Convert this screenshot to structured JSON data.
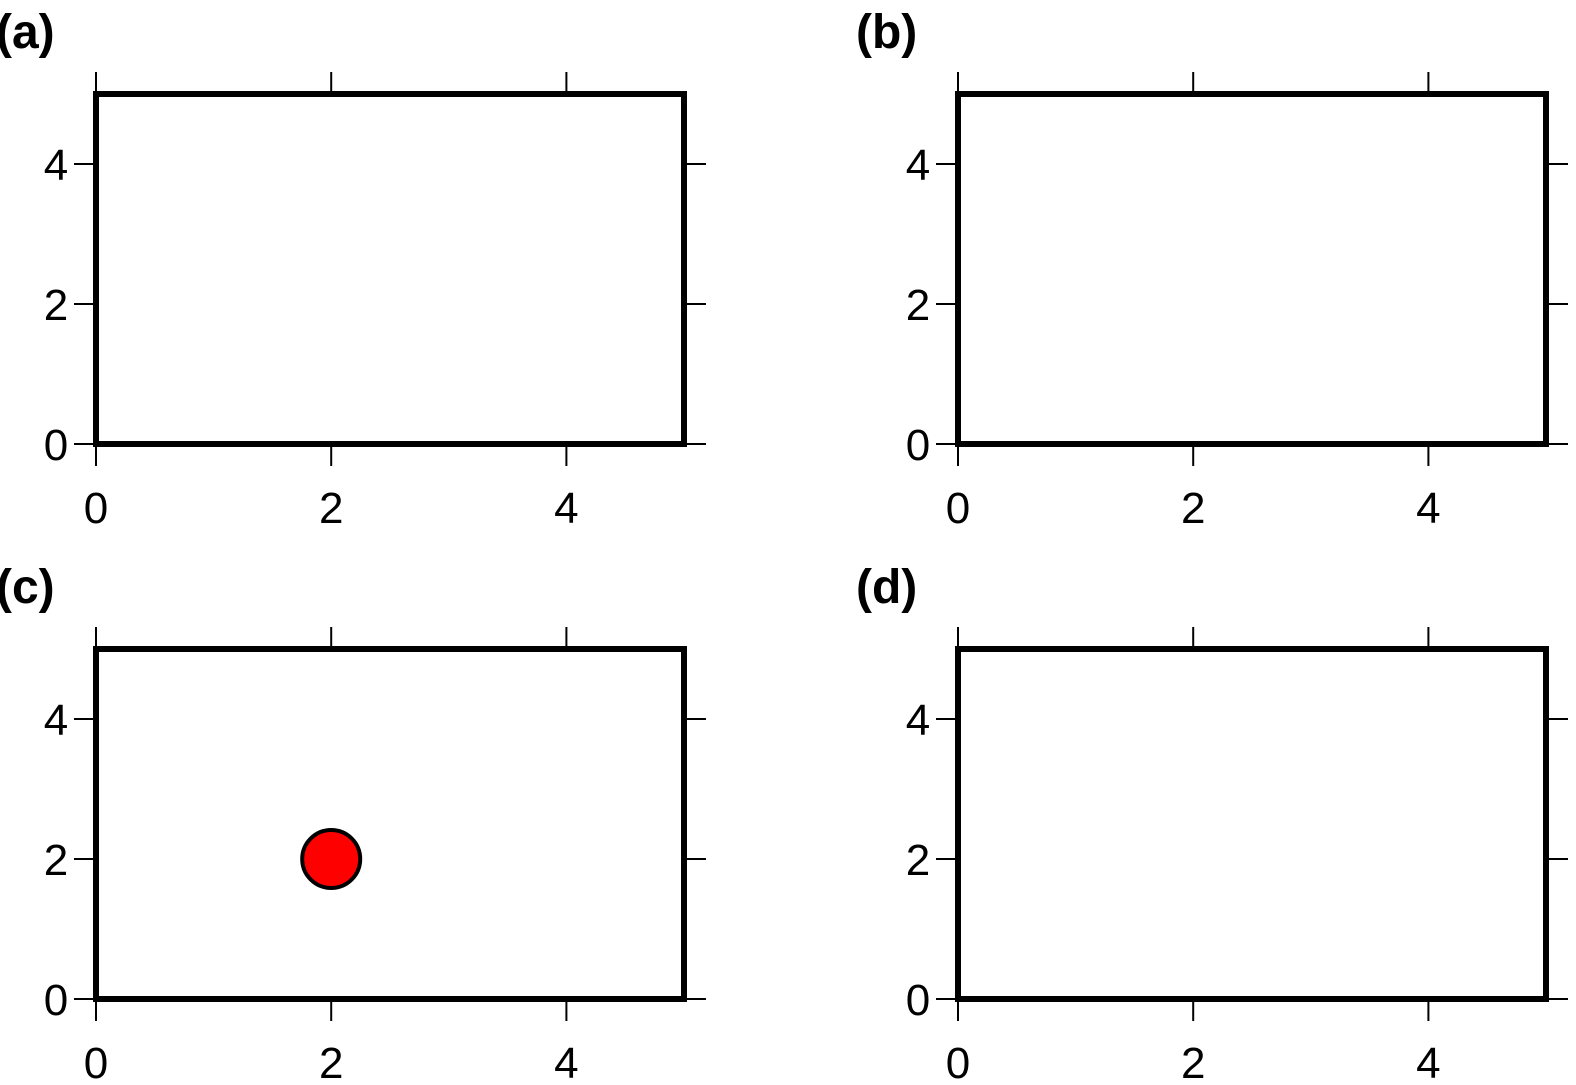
{
  "chart_data": [
    {
      "panel_label": "(a)",
      "type": "scatter",
      "title": "",
      "xlabel": "",
      "ylabel": "",
      "xlim": [
        0,
        5
      ],
      "ylim": [
        0,
        5
      ],
      "x_ticks": [
        "0",
        "2",
        "4"
      ],
      "y_ticks": [
        "0",
        "2",
        "4"
      ],
      "grid": false,
      "series": []
    },
    {
      "panel_label": "(b)",
      "type": "scatter",
      "title": "",
      "xlabel": "",
      "ylabel": "",
      "xlim": [
        0,
        5
      ],
      "ylim": [
        0,
        5
      ],
      "x_ticks": [
        "0",
        "2",
        "4"
      ],
      "y_ticks": [
        "0",
        "2",
        "4"
      ],
      "grid": false,
      "series": []
    },
    {
      "panel_label": "(c)",
      "type": "scatter",
      "title": "",
      "xlabel": "",
      "ylabel": "",
      "xlim": [
        0,
        5
      ],
      "ylim": [
        0,
        5
      ],
      "x_ticks": [
        "0",
        "2",
        "4"
      ],
      "y_ticks": [
        "0",
        "2",
        "4"
      ],
      "grid": false,
      "series": [
        {
          "color": "#ff0000",
          "edge_color": "#000000",
          "marker": "circle",
          "points": [
            {
              "x": 2,
              "y": 2
            }
          ]
        }
      ]
    },
    {
      "panel_label": "(d)",
      "type": "scatter",
      "title": "",
      "xlabel": "",
      "ylabel": "",
      "xlim": [
        0,
        5
      ],
      "ylim": [
        0,
        5
      ],
      "x_ticks": [
        "0",
        "2",
        "4"
      ],
      "y_ticks": [
        "0",
        "2",
        "4"
      ],
      "grid": false,
      "series": []
    }
  ]
}
